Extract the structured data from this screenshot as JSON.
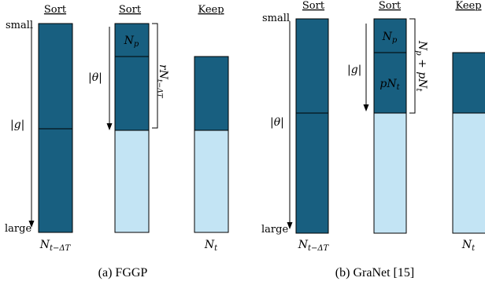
{
  "colors": {
    "dark": "#185f80",
    "light": "#c3e4f4",
    "stroke": "#000000"
  },
  "panel_a": {
    "caption": "(a) FGGP",
    "sort1_header": "Sort",
    "sort2_header": "Sort",
    "keep_header": "Keep",
    "small_label": "small",
    "large_label": "large",
    "g_label": "|g|",
    "theta_label": "|θ|",
    "np_label": "N_p",
    "brace_label": "rN_{t−ΔT}",
    "bottom_label_1": "N_{t−ΔT}",
    "bottom_label_2": "N_t"
  },
  "panel_b": {
    "caption": "(b) GraNet [15]",
    "sort1_header": "Sort",
    "sort2_header": "Sort",
    "keep_header": "Keep",
    "small_label": "small",
    "large_label": "large",
    "theta_label": "|θ|",
    "g_label": "|g|",
    "np_label": "N_p",
    "pnt_label": "pN_t",
    "brace_label": "N_p + pN_t",
    "bottom_label_1": "N_{t−ΔT}",
    "bottom_label_2": "N_t"
  }
}
